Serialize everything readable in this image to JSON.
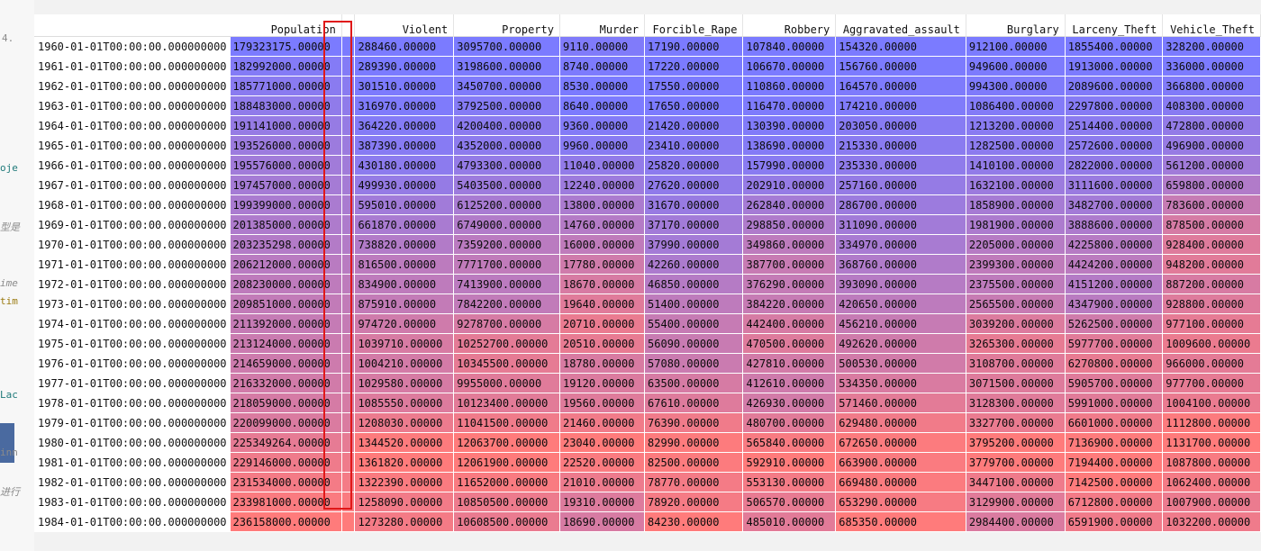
{
  "editor_fragments": [
    {
      "text": "4.",
      "cls": "frag",
      "top": 36,
      "left": 2
    },
    {
      "text": "oje",
      "cls": "frag teal",
      "top": 180,
      "left": 0
    },
    {
      "text": "型是",
      "cls": "frag italic",
      "top": 244,
      "left": 0
    },
    {
      "text": "ime",
      "cls": "frag italic",
      "top": 308,
      "left": 0
    },
    {
      "text": "tim",
      "cls": "frag gold",
      "top": 328,
      "left": 0
    },
    {
      "text": "Lac",
      "cls": "frag teal",
      "top": 432,
      "left": 0
    },
    {
      "text": "inn",
      "cls": "frag",
      "top": 496,
      "left": 0
    },
    {
      "text": "进行",
      "cls": "frag italic",
      "top": 538,
      "left": 0
    }
  ],
  "table": {
    "columns": [
      "Population",
      "",
      "Violent",
      "Property",
      "Murder",
      "Forcible_Rape",
      "Robbery",
      "Aggravated_assault",
      "Burglary",
      "Larceny_Theft",
      "Vehicle_Theft"
    ],
    "rows": [
      {
        "index": "1960-01-01T00:00:00.000000000",
        "cells": [
          "179323175.00000",
          "",
          "288460.00000",
          "3095700.00000",
          "9110.00000",
          "17190.00000",
          "107840.00000",
          "154320.00000",
          "912100.00000",
          "1855400.00000",
          "328200.00000"
        ]
      },
      {
        "index": "1961-01-01T00:00:00.000000000",
        "cells": [
          "182992000.00000",
          "",
          "289390.00000",
          "3198600.00000",
          "8740.00000",
          "17220.00000",
          "106670.00000",
          "156760.00000",
          "949600.00000",
          "1913000.00000",
          "336000.00000"
        ]
      },
      {
        "index": "1962-01-01T00:00:00.000000000",
        "cells": [
          "185771000.00000",
          "",
          "301510.00000",
          "3450700.00000",
          "8530.00000",
          "17550.00000",
          "110860.00000",
          "164570.00000",
          "994300.00000",
          "2089600.00000",
          "366800.00000"
        ]
      },
      {
        "index": "1963-01-01T00:00:00.000000000",
        "cells": [
          "188483000.00000",
          "",
          "316970.00000",
          "3792500.00000",
          "8640.00000",
          "17650.00000",
          "116470.00000",
          "174210.00000",
          "1086400.00000",
          "2297800.00000",
          "408300.00000"
        ]
      },
      {
        "index": "1964-01-01T00:00:00.000000000",
        "cells": [
          "191141000.00000",
          "",
          "364220.00000",
          "4200400.00000",
          "9360.00000",
          "21420.00000",
          "130390.00000",
          "203050.00000",
          "1213200.00000",
          "2514400.00000",
          "472800.00000"
        ]
      },
      {
        "index": "1965-01-01T00:00:00.000000000",
        "cells": [
          "193526000.00000",
          "",
          "387390.00000",
          "4352000.00000",
          "9960.00000",
          "23410.00000",
          "138690.00000",
          "215330.00000",
          "1282500.00000",
          "2572600.00000",
          "496900.00000"
        ]
      },
      {
        "index": "1966-01-01T00:00:00.000000000",
        "cells": [
          "195576000.00000",
          "",
          "430180.00000",
          "4793300.00000",
          "11040.00000",
          "25820.00000",
          "157990.00000",
          "235330.00000",
          "1410100.00000",
          "2822000.00000",
          "561200.00000"
        ]
      },
      {
        "index": "1967-01-01T00:00:00.000000000",
        "cells": [
          "197457000.00000",
          "",
          "499930.00000",
          "5403500.00000",
          "12240.00000",
          "27620.00000",
          "202910.00000",
          "257160.00000",
          "1632100.00000",
          "3111600.00000",
          "659800.00000"
        ]
      },
      {
        "index": "1968-01-01T00:00:00.000000000",
        "cells": [
          "199399000.00000",
          "",
          "595010.00000",
          "6125200.00000",
          "13800.00000",
          "31670.00000",
          "262840.00000",
          "286700.00000",
          "1858900.00000",
          "3482700.00000",
          "783600.00000"
        ]
      },
      {
        "index": "1969-01-01T00:00:00.000000000",
        "cells": [
          "201385000.00000",
          "",
          "661870.00000",
          "6749000.00000",
          "14760.00000",
          "37170.00000",
          "298850.00000",
          "311090.00000",
          "1981900.00000",
          "3888600.00000",
          "878500.00000"
        ]
      },
      {
        "index": "1970-01-01T00:00:00.000000000",
        "cells": [
          "203235298.00000",
          "",
          "738820.00000",
          "7359200.00000",
          "16000.00000",
          "37990.00000",
          "349860.00000",
          "334970.00000",
          "2205000.00000",
          "4225800.00000",
          "928400.00000"
        ]
      },
      {
        "index": "1971-01-01T00:00:00.000000000",
        "cells": [
          "206212000.00000",
          "",
          "816500.00000",
          "7771700.00000",
          "17780.00000",
          "42260.00000",
          "387700.00000",
          "368760.00000",
          "2399300.00000",
          "4424200.00000",
          "948200.00000"
        ]
      },
      {
        "index": "1972-01-01T00:00:00.000000000",
        "cells": [
          "208230000.00000",
          "",
          "834900.00000",
          "7413900.00000",
          "18670.00000",
          "46850.00000",
          "376290.00000",
          "393090.00000",
          "2375500.00000",
          "4151200.00000",
          "887200.00000"
        ]
      },
      {
        "index": "1973-01-01T00:00:00.000000000",
        "cells": [
          "209851000.00000",
          "",
          "875910.00000",
          "7842200.00000",
          "19640.00000",
          "51400.00000",
          "384220.00000",
          "420650.00000",
          "2565500.00000",
          "4347900.00000",
          "928800.00000"
        ]
      },
      {
        "index": "1974-01-01T00:00:00.000000000",
        "cells": [
          "211392000.00000",
          "",
          "974720.00000",
          "9278700.00000",
          "20710.00000",
          "55400.00000",
          "442400.00000",
          "456210.00000",
          "3039200.00000",
          "5262500.00000",
          "977100.00000"
        ]
      },
      {
        "index": "1975-01-01T00:00:00.000000000",
        "cells": [
          "213124000.00000",
          "",
          "1039710.00000",
          "10252700.00000",
          "20510.00000",
          "56090.00000",
          "470500.00000",
          "492620.00000",
          "3265300.00000",
          "5977700.00000",
          "1009600.00000"
        ]
      },
      {
        "index": "1976-01-01T00:00:00.000000000",
        "cells": [
          "214659000.00000",
          "",
          "1004210.00000",
          "10345500.00000",
          "18780.00000",
          "57080.00000",
          "427810.00000",
          "500530.00000",
          "3108700.00000",
          "6270800.00000",
          "966000.00000"
        ]
      },
      {
        "index": "1977-01-01T00:00:00.000000000",
        "cells": [
          "216332000.00000",
          "",
          "1029580.00000",
          "9955000.00000",
          "19120.00000",
          "63500.00000",
          "412610.00000",
          "534350.00000",
          "3071500.00000",
          "5905700.00000",
          "977700.00000"
        ]
      },
      {
        "index": "1978-01-01T00:00:00.000000000",
        "cells": [
          "218059000.00000",
          "",
          "1085550.00000",
          "10123400.00000",
          "19560.00000",
          "67610.00000",
          "426930.00000",
          "571460.00000",
          "3128300.00000",
          "5991000.00000",
          "1004100.00000"
        ]
      },
      {
        "index": "1979-01-01T00:00:00.000000000",
        "cells": [
          "220099000.00000",
          "",
          "1208030.00000",
          "11041500.00000",
          "21460.00000",
          "76390.00000",
          "480700.00000",
          "629480.00000",
          "3327700.00000",
          "6601000.00000",
          "1112800.00000"
        ]
      },
      {
        "index": "1980-01-01T00:00:00.000000000",
        "cells": [
          "225349264.00000",
          "",
          "1344520.00000",
          "12063700.00000",
          "23040.00000",
          "82990.00000",
          "565840.00000",
          "672650.00000",
          "3795200.00000",
          "7136900.00000",
          "1131700.00000"
        ]
      },
      {
        "index": "1981-01-01T00:00:00.000000000",
        "cells": [
          "229146000.00000",
          "",
          "1361820.00000",
          "12061900.00000",
          "22520.00000",
          "82500.00000",
          "592910.00000",
          "663900.00000",
          "3779700.00000",
          "7194400.00000",
          "1087800.00000"
        ]
      },
      {
        "index": "1982-01-01T00:00:00.000000000",
        "cells": [
          "231534000.00000",
          "",
          "1322390.00000",
          "11652000.00000",
          "21010.00000",
          "78770.00000",
          "553130.00000",
          "669480.00000",
          "3447100.00000",
          "7142500.00000",
          "1062400.00000"
        ]
      },
      {
        "index": "1983-01-01T00:00:00.000000000",
        "cells": [
          "233981000.00000",
          "",
          "1258090.00000",
          "10850500.00000",
          "19310.00000",
          "78920.00000",
          "506570.00000",
          "653290.00000",
          "3129900.00000",
          "6712800.00000",
          "1007900.00000"
        ]
      },
      {
        "index": "1984-01-01T00:00:00.000000000",
        "cells": [
          "236158000.00000",
          "",
          "1273280.00000",
          "10608500.00000",
          "18690.00000",
          "84230.00000",
          "485010.00000",
          "685350.00000",
          "2984400.00000",
          "6591900.00000",
          "1032200.00000"
        ]
      }
    ]
  },
  "colors": {
    "low": "#7b7bff",
    "high": "#ff7b7b",
    "highlight_border": "#e01818"
  }
}
